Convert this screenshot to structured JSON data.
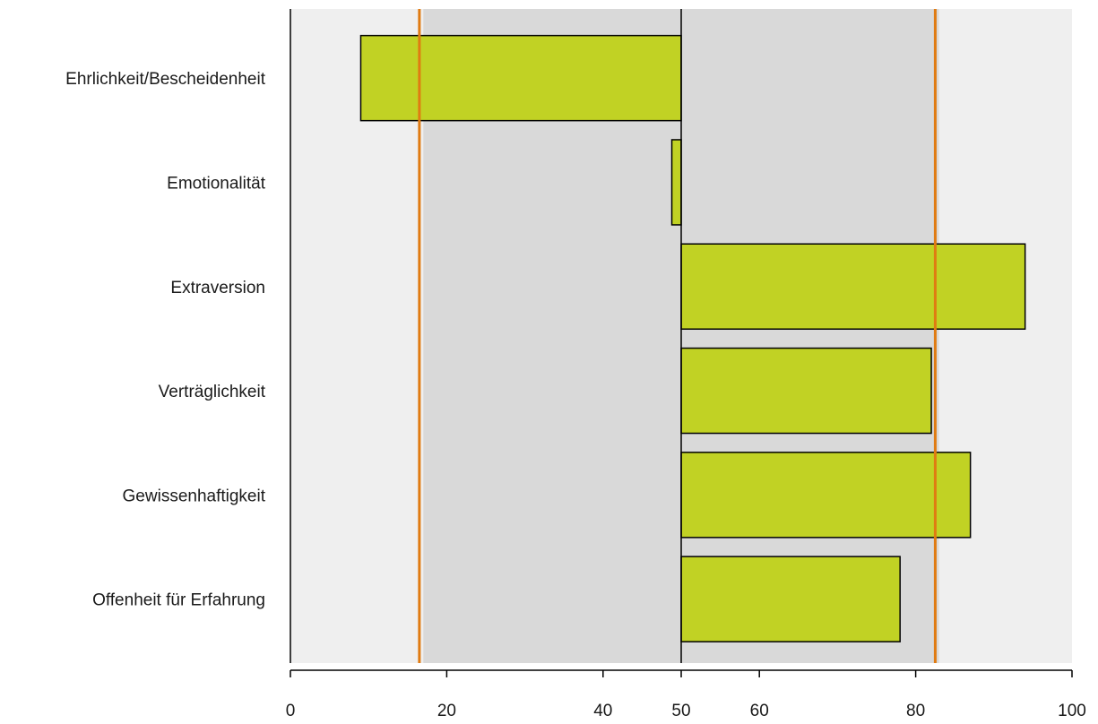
{
  "chart_data": {
    "type": "bar",
    "orientation": "horizontal",
    "baseline": 50,
    "categories": [
      "Ehrlichkeit/Bescheidenheit",
      "Emotionalität",
      "Extraversion",
      "Verträglichkeit",
      "Gewissenhaftigkeit",
      "Offenheit für Erfahrung"
    ],
    "values": [
      9,
      48.8,
      94,
      82,
      87,
      78
    ],
    "xlim": [
      0,
      100
    ],
    "xticks": [
      0,
      20,
      40,
      50,
      60,
      80,
      100
    ],
    "title": "",
    "xlabel": "",
    "ylabel": "",
    "bands": [
      {
        "from": 0,
        "to": 17,
        "color": "#efefef"
      },
      {
        "from": 17,
        "to": 83,
        "color": "#d9d9d9"
      },
      {
        "from": 83,
        "to": 100,
        "color": "#efefef"
      }
    ],
    "reference_lines": [
      {
        "x": 16.5,
        "color": "#e07b12"
      },
      {
        "x": 82.5,
        "color": "#e07b12"
      },
      {
        "x": 50,
        "color": "#000000"
      }
    ],
    "bar_color": "#c1d224",
    "bar_edge_color": "#000000",
    "grid": false,
    "legend": "none"
  }
}
